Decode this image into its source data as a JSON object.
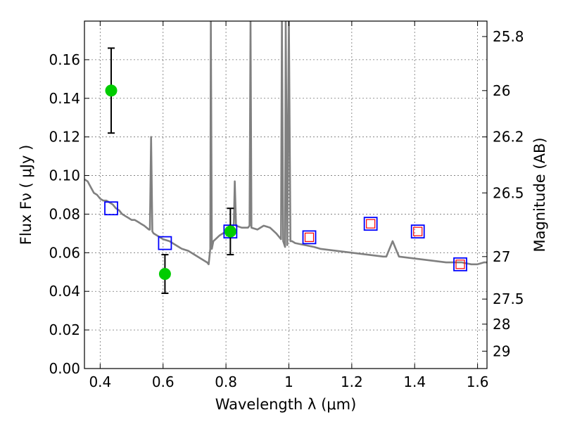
{
  "chart_data": {
    "type": "scatter",
    "xlabel": "Wavelength  λ (μm)",
    "ylabel": "Flux  Fν  ( μJy )",
    "ylabel_right": "Magnitude (AB)",
    "xlim": [
      0.35,
      1.63
    ],
    "ylim": [
      0.0,
      0.18
    ],
    "x_ticks": [
      0.4,
      0.6,
      0.8,
      1.0,
      1.2,
      1.4,
      1.6
    ],
    "x_tick_labels": [
      "0.4",
      "0.6",
      "0.8",
      "1",
      "1.2",
      "1.4",
      "1.6"
    ],
    "y_ticks": [
      0.0,
      0.02,
      0.04,
      0.06,
      0.08,
      0.1,
      0.12,
      0.14,
      0.16
    ],
    "y_tick_labels": [
      "0.00",
      "0.02",
      "0.04",
      "0.06",
      "0.08",
      "0.10",
      "0.12",
      "0.14",
      "0.16"
    ],
    "right_ticks": [
      {
        "label": "25.8",
        "flux": 0.172
      },
      {
        "label": "26",
        "flux": 0.144
      },
      {
        "label": "26.2",
        "flux": 0.12
      },
      {
        "label": "26.5",
        "flux": 0.091
      },
      {
        "label": "27",
        "flux": 0.058
      },
      {
        "label": "27.5",
        "flux": 0.036
      },
      {
        "label": "28",
        "flux": 0.023
      },
      {
        "label": "29",
        "flux": 0.009
      }
    ],
    "grid": true,
    "series": [
      {
        "kind": "line",
        "color": "#808080",
        "points": [
          [
            0.35,
            0.098
          ],
          [
            0.36,
            0.097
          ],
          [
            0.37,
            0.094
          ],
          [
            0.38,
            0.091
          ],
          [
            0.39,
            0.09
          ],
          [
            0.4,
            0.088
          ],
          [
            0.41,
            0.087
          ],
          [
            0.42,
            0.087
          ],
          [
            0.43,
            0.086
          ],
          [
            0.44,
            0.085
          ],
          [
            0.45,
            0.083
          ],
          [
            0.46,
            0.082
          ],
          [
            0.47,
            0.08
          ],
          [
            0.48,
            0.079
          ],
          [
            0.49,
            0.078
          ],
          [
            0.5,
            0.077
          ],
          [
            0.51,
            0.077
          ],
          [
            0.52,
            0.076
          ],
          [
            0.53,
            0.075
          ],
          [
            0.54,
            0.074
          ],
          [
            0.555,
            0.072
          ],
          [
            0.558,
            0.072
          ],
          [
            0.562,
            0.12
          ],
          [
            0.566,
            0.071
          ],
          [
            0.57,
            0.07
          ],
          [
            0.58,
            0.069
          ],
          [
            0.59,
            0.068
          ],
          [
            0.6,
            0.067
          ],
          [
            0.62,
            0.066
          ],
          [
            0.64,
            0.064
          ],
          [
            0.66,
            0.062
          ],
          [
            0.68,
            0.061
          ],
          [
            0.7,
            0.059
          ],
          [
            0.72,
            0.057
          ],
          [
            0.74,
            0.055
          ],
          [
            0.745,
            0.054
          ],
          [
            0.75,
            0.062
          ],
          [
            0.752,
            0.18
          ],
          [
            0.755,
            0.062
          ],
          [
            0.76,
            0.066
          ],
          [
            0.78,
            0.069
          ],
          [
            0.8,
            0.071
          ],
          [
            0.82,
            0.072
          ],
          [
            0.825,
            0.075
          ],
          [
            0.828,
            0.097
          ],
          [
            0.832,
            0.074
          ],
          [
            0.85,
            0.073
          ],
          [
            0.87,
            0.073
          ],
          [
            0.875,
            0.074
          ],
          [
            0.878,
            0.18
          ],
          [
            0.881,
            0.073
          ],
          [
            0.9,
            0.072
          ],
          [
            0.92,
            0.074
          ],
          [
            0.94,
            0.073
          ],
          [
            0.96,
            0.07
          ],
          [
            0.975,
            0.067
          ],
          [
            0.978,
            0.18
          ],
          [
            0.982,
            0.066
          ],
          [
            0.988,
            0.063
          ],
          [
            0.99,
            0.18
          ],
          [
            0.995,
            0.064
          ],
          [
            1.0,
            0.18
          ],
          [
            1.005,
            0.066
          ],
          [
            1.01,
            0.066
          ],
          [
            1.02,
            0.065
          ],
          [
            1.05,
            0.064
          ],
          [
            1.08,
            0.063
          ],
          [
            1.1,
            0.062
          ],
          [
            1.15,
            0.061
          ],
          [
            1.2,
            0.06
          ],
          [
            1.25,
            0.059
          ],
          [
            1.3,
            0.058
          ],
          [
            1.31,
            0.058
          ],
          [
            1.33,
            0.066
          ],
          [
            1.35,
            0.058
          ],
          [
            1.4,
            0.057
          ],
          [
            1.45,
            0.056
          ],
          [
            1.5,
            0.055
          ],
          [
            1.55,
            0.055
          ],
          [
            1.58,
            0.054
          ],
          [
            1.6,
            0.054
          ],
          [
            1.62,
            0.055
          ],
          [
            1.63,
            0.055
          ]
        ]
      },
      {
        "kind": "errorbar_points",
        "color": "#00cc00",
        "points": [
          {
            "x": 0.435,
            "y": 0.144,
            "err": 0.022
          },
          {
            "x": 0.606,
            "y": 0.049,
            "err": 0.01
          },
          {
            "x": 0.814,
            "y": 0.071,
            "err": 0.012
          }
        ]
      },
      {
        "kind": "squares",
        "color": "#0000ff",
        "points": [
          {
            "x": 0.435,
            "y": 0.083
          },
          {
            "x": 0.606,
            "y": 0.065
          },
          {
            "x": 0.814,
            "y": 0.071
          },
          {
            "x": 1.065,
            "y": 0.068
          },
          {
            "x": 1.26,
            "y": 0.075
          },
          {
            "x": 1.41,
            "y": 0.071
          },
          {
            "x": 1.545,
            "y": 0.054
          }
        ]
      },
      {
        "kind": "squares_small",
        "color": "#ff0000",
        "points": [
          {
            "x": 1.065,
            "y": 0.068
          },
          {
            "x": 1.26,
            "y": 0.075
          },
          {
            "x": 1.41,
            "y": 0.071
          },
          {
            "x": 1.545,
            "y": 0.054
          }
        ]
      }
    ]
  }
}
